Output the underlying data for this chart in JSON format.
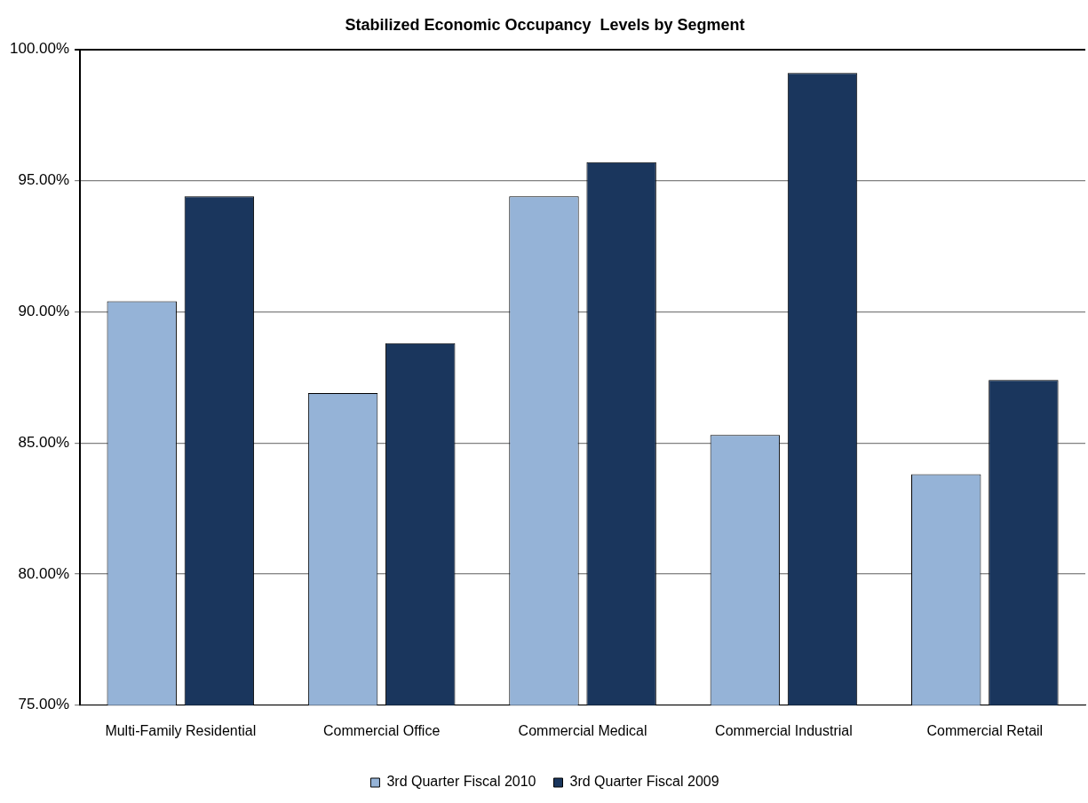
{
  "chart_data": {
    "type": "bar",
    "title": "Stabilized Economic Occupancy  Levels by Segment",
    "categories": [
      "Multi-Family Residential",
      "Commercial Office",
      "Commercial Medical",
      "Commercial Industrial",
      "Commercial Retail"
    ],
    "series": [
      {
        "name": "3rd Quarter Fiscal 2010",
        "color": "#95b3d7",
        "values": [
          90.4,
          86.9,
          94.4,
          85.3,
          83.8
        ]
      },
      {
        "name": "3rd Quarter Fiscal 2009",
        "color": "#1a365d",
        "values": [
          94.4,
          88.8,
          95.7,
          99.1,
          87.4
        ]
      }
    ],
    "ylim": [
      75,
      100
    ],
    "yticks": [
      {
        "value": 75,
        "label": "75.00%"
      },
      {
        "value": 80,
        "label": "80.00%"
      },
      {
        "value": 85,
        "label": "85.00%"
      },
      {
        "value": 90,
        "label": "90.00%"
      },
      {
        "value": 95,
        "label": "95.00%"
      },
      {
        "value": 100,
        "label": "100.00%"
      }
    ],
    "grid": "y",
    "legend": "bottom"
  }
}
